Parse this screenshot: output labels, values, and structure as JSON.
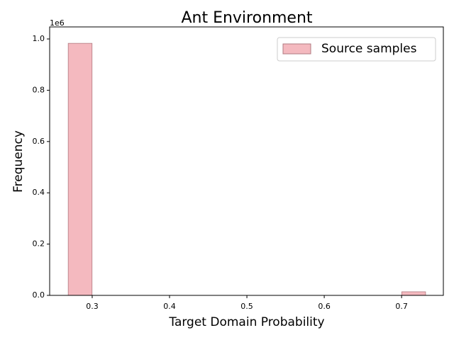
{
  "chart_data": {
    "type": "histogram",
    "title": "Ant Environment",
    "x_label": "Target Domain Probability",
    "y_label": "Frequency",
    "bins": [
      0.269,
      0.2998,
      0.3306,
      0.3614,
      0.3922,
      0.423,
      0.4538,
      0.4846,
      0.5154,
      0.5462,
      0.577,
      0.6078,
      0.6386,
      0.6694,
      0.7002,
      0.731
    ],
    "series": [
      {
        "name": "Source samples",
        "color": "#f4b9bf",
        "edgecolor": "#b07a80",
        "values": [
          983000,
          0,
          0,
          0,
          0,
          0,
          0,
          0,
          0,
          0,
          0,
          0,
          0,
          0,
          14000
        ]
      }
    ],
    "xlim": [
      0.245,
      0.754
    ],
    "xticks": [
      0.3,
      0.4,
      0.5,
      0.6,
      0.7
    ],
    "ylim": [
      0,
      1047000
    ],
    "yticks": [
      {
        "value": 0,
        "label": "0.0"
      },
      {
        "value": 200000,
        "label": "0.2"
      },
      {
        "value": 400000,
        "label": "0.4"
      },
      {
        "value": 600000,
        "label": "0.6"
      },
      {
        "value": 800000,
        "label": "0.8"
      },
      {
        "value": 1000000,
        "label": "1.0"
      }
    ],
    "y_offset_label": "1e6",
    "legend": "upper right",
    "grid": false
  }
}
